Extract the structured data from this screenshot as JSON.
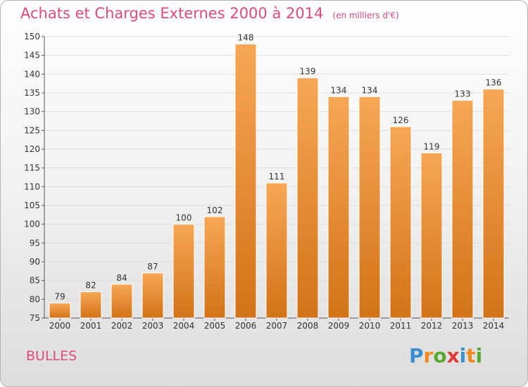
{
  "title": "Achats et Charges Externes 2000 à 2014",
  "unit": "(en milliers d'€)",
  "commune": "BULLES",
  "logo": {
    "text": "Proxiti",
    "letters": [
      "P",
      "r",
      "o",
      "x",
      "i",
      "t",
      "i"
    ],
    "colors": [
      "#3a8fd0",
      "#f08a1c",
      "#5aa832",
      "#e03a3a",
      "#3a8fd0",
      "#f08a1c",
      "#5aa832"
    ]
  },
  "colors": {
    "bar_top": "#f7a755",
    "bar_bottom": "#d27318",
    "title": "#de4b7a",
    "grid": "#dddddd"
  },
  "chart_data": {
    "type": "bar",
    "categories": [
      "2000",
      "2001",
      "2002",
      "2003",
      "2004",
      "2005",
      "2006",
      "2007",
      "2008",
      "2009",
      "2010",
      "2011",
      "2012",
      "2013",
      "2014"
    ],
    "values": [
      79,
      82,
      84,
      87,
      100,
      102,
      148,
      111,
      139,
      134,
      134,
      126,
      119,
      133,
      136
    ],
    "ylim": [
      75,
      150
    ],
    "yticks": [
      75,
      80,
      85,
      90,
      95,
      100,
      105,
      110,
      115,
      120,
      125,
      130,
      135,
      140,
      145,
      150
    ],
    "title": "Achats et Charges Externes 2000 à 2014",
    "xlabel": "",
    "ylabel": "",
    "grid": true,
    "data_labels": true
  }
}
